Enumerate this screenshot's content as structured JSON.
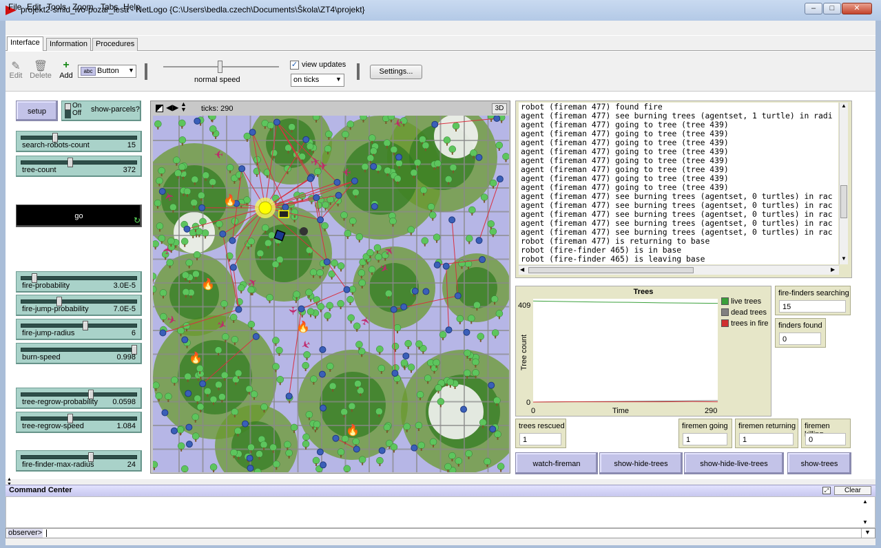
{
  "window": {
    "title": "projekt2-smid_ivo-pozar_lesa - NetLogo {C:\\Users\\bedla.czech\\Documents\\Škola\\ZT4\\projekt}",
    "controls": {
      "minimize": "–",
      "maximize": "□",
      "close": "✕"
    }
  },
  "menu": [
    "File",
    "Edit",
    "Tools",
    "Zoom",
    "Tabs",
    "Help"
  ],
  "tabs": [
    "Interface",
    "Information",
    "Procedures"
  ],
  "toolbar": {
    "edit_label": "Edit",
    "delete_label": "Delete",
    "add_label": "Add",
    "widget_type": "Button",
    "speed_label": "normal speed",
    "view_updates_label": "view updates",
    "view_updates_checked": true,
    "update_mode": "on ticks",
    "settings_label": "Settings..."
  },
  "buttons": {
    "setup": "setup",
    "go": "go",
    "watch_fireman": "watch-fireman",
    "show_hide_trees": "show-hide-trees",
    "show_hide_live_trees": "show-hide-live-trees",
    "show_trees": "show-trees"
  },
  "switch": {
    "on": "On",
    "off": "Off",
    "label": "show-parcels?"
  },
  "sliders": [
    {
      "label": "search-robots-count",
      "value": "15",
      "fraction": 0.28
    },
    {
      "label": "tree-count",
      "value": "372",
      "fraction": 0.42
    },
    {
      "label": "fire-probability",
      "value": "3.0E-5",
      "fraction": 0.1
    },
    {
      "label": "fire-jump-probability",
      "value": "7.0E-5",
      "fraction": 0.32
    },
    {
      "label": "fire-jump-radius",
      "value": "6",
      "fraction": 0.55
    },
    {
      "label": "burn-speed",
      "value": "0.998",
      "fraction": 0.99
    },
    {
      "label": "tree-regrow-probability",
      "value": "0.0598",
      "fraction": 0.6
    },
    {
      "label": "tree-regrow-speed",
      "value": "1.084",
      "fraction": 0.42
    },
    {
      "label": "fire-finder-max-radius",
      "value": "24",
      "fraction": 0.6
    }
  ],
  "view": {
    "ticks_label": "ticks: 290",
    "three_d": "3D"
  },
  "output_lines": [
    "robot (fireman 477) found fire",
    "agent (fireman 477) see burning trees (agentset, 1 turtle) in radi",
    "agent (fireman 477) going to tree (tree 439)",
    "agent (fireman 477) going to tree (tree 439)",
    "agent (fireman 477) going to tree (tree 439)",
    "agent (fireman 477) going to tree (tree 439)",
    "agent (fireman 477) going to tree (tree 439)",
    "agent (fireman 477) going to tree (tree 439)",
    "agent (fireman 477) going to tree (tree 439)",
    "agent (fireman 477) going to tree (tree 439)",
    "agent (fireman 477) see burning trees (agentset, 0 turtles) in rac",
    "agent (fireman 477) see burning trees (agentset, 0 turtles) in rac",
    "agent (fireman 477) see burning trees (agentset, 0 turtles) in rac",
    "agent (fireman 477) see burning trees (agentset, 0 turtles) in rac",
    "agent (fireman 477) see burning trees (agentset, 0 turtles) in rac",
    "robot (fireman 477) is returning to base",
    "robot (fire-finder 465) is in base",
    "robot (fire-finder 465) is leaving base"
  ],
  "plot": {
    "title": "Trees",
    "xlabel": "Time",
    "ylabel": "Tree count",
    "y_max_label": "409",
    "y_min_label": "0",
    "x_min_label": "0",
    "x_max_label": "290",
    "legend": [
      {
        "name": "live trees",
        "color": "#3aa03a"
      },
      {
        "name": "dead trees",
        "color": "#808080"
      },
      {
        "name": "trees in fire",
        "color": "#d03030"
      }
    ]
  },
  "chart_data": {
    "type": "line",
    "title": "Trees",
    "xlabel": "Time",
    "ylabel": "Tree count",
    "xlim": [
      0,
      290
    ],
    "ylim": [
      0,
      409
    ],
    "x": [
      0,
      50,
      100,
      150,
      200,
      250,
      290
    ],
    "series": [
      {
        "name": "live trees",
        "values": [
          400,
          398,
          396,
          395,
          393,
          392,
          391
        ]
      },
      {
        "name": "dead trees",
        "values": [
          0,
          1,
          2,
          3,
          4,
          5,
          6
        ]
      },
      {
        "name": "trees in fire",
        "values": [
          0,
          1,
          1,
          1,
          1,
          2,
          1
        ]
      }
    ]
  },
  "monitors": [
    {
      "label": "fire-finders searching",
      "value": "15"
    },
    {
      "label": "finders found",
      "value": "0"
    },
    {
      "label": "trees rescued",
      "value": "1"
    },
    {
      "label": "firemen going",
      "value": "1"
    },
    {
      "label": "firemen returning",
      "value": "1"
    },
    {
      "label": "firemen killing",
      "value": "0"
    }
  ],
  "command_center": {
    "title": "Command Center",
    "clear_label": "Clear",
    "prompt": "observer>"
  },
  "colors": {
    "button": "#c3c3e8",
    "slider": "#a9d2c9",
    "monitor": "#e6e6c8",
    "fire_line": "#d03040"
  }
}
